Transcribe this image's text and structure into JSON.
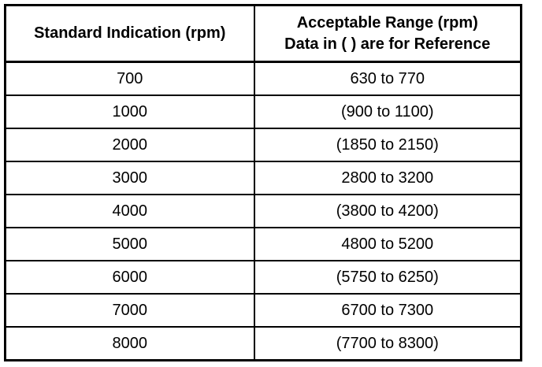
{
  "table": {
    "header": [
      [
        "Standard Indication (rpm)"
      ],
      [
        "Acceptable Range (rpm)",
        "Data in ( ) are for Reference"
      ]
    ],
    "rows": [
      [
        "700",
        "630 to 770"
      ],
      [
        "1000",
        "(900 to 1100)"
      ],
      [
        "2000",
        "(1850 to 2150)"
      ],
      [
        "3000",
        "2800 to 3200"
      ],
      [
        "4000",
        "(3800 to 4200)"
      ],
      [
        "5000",
        "4800 to 5200"
      ],
      [
        "6000",
        "(5750 to 6250)"
      ],
      [
        "7000",
        "6700 to 7300"
      ],
      [
        "8000",
        "(7700 to 8300)"
      ]
    ]
  }
}
